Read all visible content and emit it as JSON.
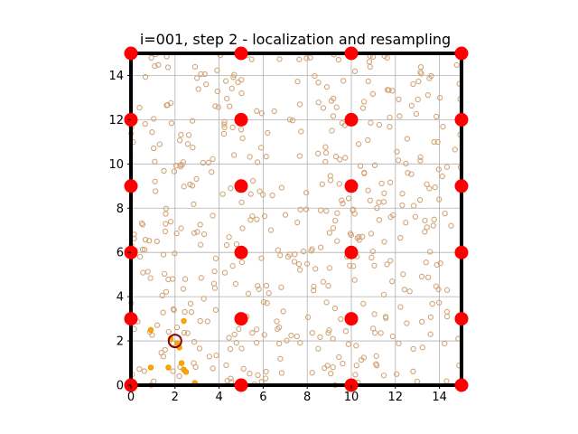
{
  "chart_data": {
    "type": "scatter",
    "title": "i=001, step 2 - localization and resampling",
    "xlabel": "",
    "ylabel": "",
    "xlim": [
      0,
      15
    ],
    "ylim": [
      0,
      15
    ],
    "grid": true,
    "xticks": [
      0,
      2,
      4,
      6,
      8,
      10,
      12,
      14
    ],
    "yticks": [
      0,
      2,
      4,
      6,
      8,
      10,
      12,
      14
    ],
    "colors": {
      "landmark": "#ff0000",
      "particle": "#d2a679",
      "resampled": "#ffa500",
      "robot": "#8b0000",
      "grid": "#b0b0b0",
      "wall": "#000000"
    },
    "landmarks": [
      [
        0,
        0
      ],
      [
        0,
        3
      ],
      [
        0,
        6
      ],
      [
        0,
        9
      ],
      [
        0,
        12
      ],
      [
        0,
        15
      ],
      [
        5,
        0
      ],
      [
        5,
        3
      ],
      [
        5,
        6
      ],
      [
        5,
        9
      ],
      [
        5,
        12
      ],
      [
        5,
        15
      ],
      [
        10,
        0
      ],
      [
        10,
        3
      ],
      [
        10,
        6
      ],
      [
        10,
        9
      ],
      [
        10,
        12
      ],
      [
        10,
        15
      ],
      [
        15,
        0
      ],
      [
        15,
        3
      ],
      [
        15,
        6
      ],
      [
        15,
        9
      ],
      [
        15,
        12
      ],
      [
        15,
        15
      ]
    ],
    "resampled_particles": [
      [
        0.9,
        0.8
      ],
      [
        0.9,
        2.5
      ],
      [
        1.7,
        0.8
      ],
      [
        2.2,
        1.7
      ],
      [
        2.1,
        1.9
      ],
      [
        2.3,
        1.0
      ],
      [
        2.4,
        0.7
      ],
      [
        2.5,
        0.6
      ],
      [
        2.9,
        0.1
      ],
      [
        2.4,
        2.9
      ],
      [
        1.8,
        2.1
      ]
    ],
    "robot": [
      2.0,
      2.0
    ],
    "particle_count": 480,
    "particle_seed": 7
  }
}
